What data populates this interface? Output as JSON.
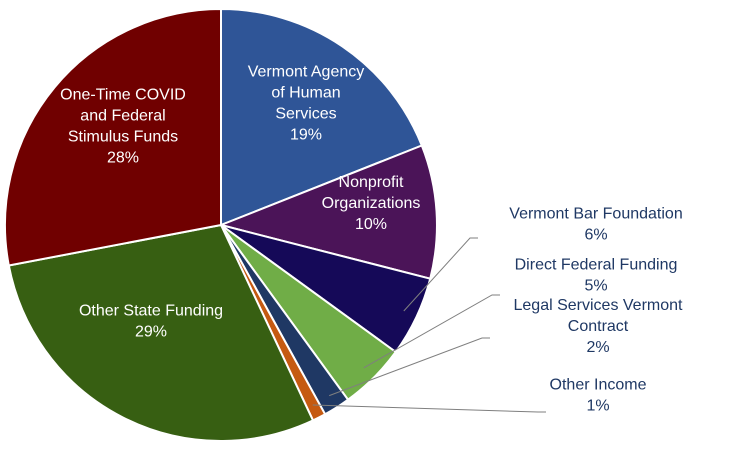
{
  "chart_data": {
    "type": "pie",
    "title": "",
    "slices": [
      {
        "name": "Vermont Agency of Human Services",
        "label_lines": [
          "Vermont Agency",
          "of Human",
          "Services"
        ],
        "pct_label": "19%",
        "value": 19,
        "color": "#2f5597"
      },
      {
        "name": "Nonprofit Organizations",
        "label_lines": [
          "Nonprofit",
          "Organizations"
        ],
        "pct_label": "10%",
        "value": 10,
        "color": "#4b1458"
      },
      {
        "name": "Vermont Bar Foundation",
        "label_lines": [
          "Vermont Bar Foundation"
        ],
        "pct_label": "6%",
        "value": 6,
        "color": "#150958"
      },
      {
        "name": "Direct Federal Funding",
        "label_lines": [
          "Direct Federal Funding"
        ],
        "pct_label": "5%",
        "value": 5,
        "color": "#70ad47"
      },
      {
        "name": "Legal Services Vermont Contract",
        "label_lines": [
          "Legal Services Vermont",
          "Contract"
        ],
        "pct_label": "2%",
        "value": 2,
        "color": "#1f3864"
      },
      {
        "name": "Other Income",
        "label_lines": [
          "Other Income"
        ],
        "pct_label": "1%",
        "value": 1,
        "color": "#c55a11"
      },
      {
        "name": "Other State Funding",
        "label_lines": [
          "Other State Funding"
        ],
        "pct_label": "29%",
        "value": 29,
        "color": "#375f12"
      },
      {
        "name": "One-Time COVID and Federal Stimulus Funds",
        "label_lines": [
          "One-Time COVID",
          "and Federal",
          "Stimulus Funds"
        ],
        "pct_label": "28%",
        "value": 28,
        "color": "#700000"
      }
    ]
  }
}
